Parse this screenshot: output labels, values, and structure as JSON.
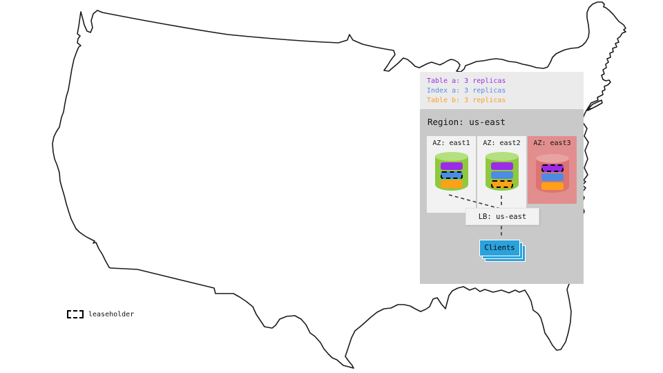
{
  "legend": {
    "items": [
      {
        "label": "Table a: 3 replicas",
        "color": "#9b2fe0",
        "key": "table_a"
      },
      {
        "label": "Index a: 3 replicas",
        "color": "#5b8de8",
        "key": "index_a"
      },
      {
        "label": "Table b: 3 replicas",
        "color": "#f7a028",
        "key": "table_b"
      }
    ]
  },
  "region": {
    "title": "Region: us-east",
    "azs": [
      {
        "label": "AZ: east1",
        "down": false,
        "replicas": [
          {
            "name": "table-a",
            "color_key": "table_a_bar",
            "leaseholder": false
          },
          {
            "name": "index-a",
            "color_key": "index_a_bar",
            "leaseholder": true
          },
          {
            "name": "table-b",
            "color_key": "table_b_bar",
            "leaseholder": false
          }
        ]
      },
      {
        "label": "AZ: east2",
        "down": false,
        "replicas": [
          {
            "name": "table-a",
            "color_key": "table_a_bar",
            "leaseholder": false
          },
          {
            "name": "index-a",
            "color_key": "index_a_bar",
            "leaseholder": false
          },
          {
            "name": "table-b",
            "color_key": "table_b_bar",
            "leaseholder": true
          }
        ]
      },
      {
        "label": "AZ: east3",
        "down": true,
        "replicas": [
          {
            "name": "table-a",
            "color_key": "table_a_bar",
            "leaseholder": true
          },
          {
            "name": "index-a",
            "color_key": "index_a_bar",
            "leaseholder": false
          },
          {
            "name": "table-b",
            "color_key": "table_b_bar",
            "leaseholder": false
          }
        ]
      }
    ]
  },
  "lb": {
    "label": "LB: us-east"
  },
  "clients": {
    "label": "Clients"
  },
  "key": {
    "label": "leaseholder"
  },
  "colors": {
    "table_a_bar": "#9c2be8",
    "index_a_bar": "#4d8ce0",
    "table_b_bar": "#ffa018",
    "green_body": "#8fc93f",
    "green_top": "#b5e07f",
    "red_body": "#dd7373",
    "red_top": "#e9a2a2",
    "az_up_bg": "#f2f2f2",
    "az_down_bg": "#e28e8e",
    "legend_bg": "#ebebeb",
    "region_bg": "#c9c9c9",
    "client_blue": "#2ba2dc",
    "map_stroke": "#1b1b1b"
  }
}
